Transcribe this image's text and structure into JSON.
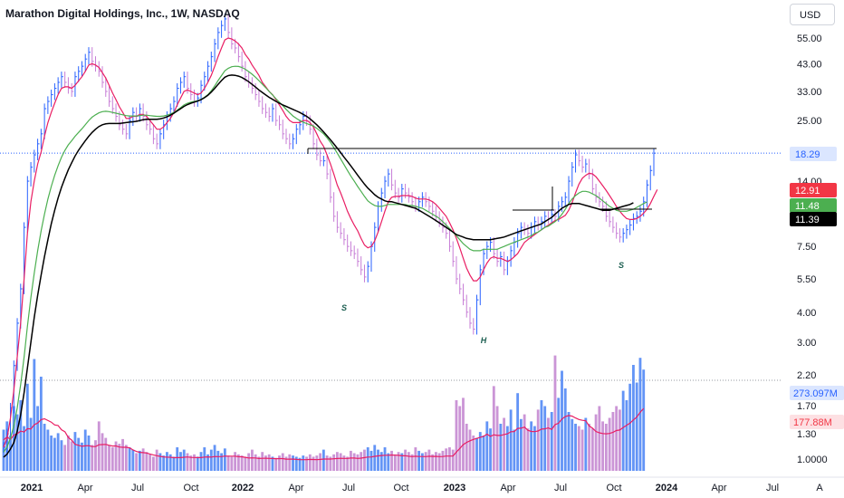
{
  "header": {
    "title": "Marathon Digital Holdings, Inc., 1W, NASDAQ",
    "currency": "USD"
  },
  "chart_data": {
    "type": "candlestick",
    "price_scale": "log",
    "price_ticks": [
      "55.00",
      "43.00",
      "33.00",
      "25.00",
      "14.00",
      "7.50",
      "5.50",
      "4.00",
      "3.00",
      "2.20",
      "1.70",
      "1.30",
      "1.0000"
    ],
    "price_tick_values": [
      55,
      43,
      33,
      25,
      14,
      7.5,
      5.5,
      4.0,
      3.0,
      2.2,
      1.7,
      1.3,
      1.0
    ],
    "time_labels": [
      "2021",
      "Apr",
      "Jul",
      "Oct",
      "2022",
      "Apr",
      "Jul",
      "Oct",
      "2023",
      "Apr",
      "Jul",
      "Oct",
      "2024",
      "Apr",
      "Jul",
      "A"
    ],
    "time_label_bold": [
      true,
      false,
      false,
      false,
      true,
      false,
      false,
      false,
      true,
      false,
      false,
      false,
      true,
      false,
      false,
      false
    ],
    "price_labels": [
      {
        "text": "18.29",
        "value": 18.29,
        "color": "#dbe6ff",
        "text_color": "#2962ff"
      },
      {
        "text": "12.91",
        "value": 12.91,
        "color": "#f23645",
        "text_color": "#ffffff"
      },
      {
        "text": "11.48",
        "value": 11.48,
        "color": "#4caf50",
        "text_color": "#ffffff"
      },
      {
        "text": "11.39",
        "value": 11.39,
        "color": "#000000",
        "text_color": "#ffffff"
      }
    ],
    "volume_labels": [
      {
        "text": "273.097M",
        "color": "#2962ff"
      },
      {
        "text": "177.88M",
        "color": "#f23645"
      }
    ],
    "closes": [
      1.1,
      1.25,
      1.6,
      2.4,
      3.6,
      5.0,
      9.0,
      14,
      16,
      18,
      20,
      22,
      28,
      30,
      32,
      34,
      36,
      38,
      36,
      34,
      33,
      38,
      40,
      42,
      45,
      48,
      44,
      42,
      40,
      36,
      33,
      30,
      28,
      26,
      24,
      23,
      22,
      25,
      27,
      26,
      28,
      26,
      24,
      23,
      21,
      20,
      22,
      24,
      26,
      28,
      30,
      34,
      36,
      38,
      34,
      32,
      30,
      31,
      35,
      38,
      42,
      46,
      52,
      58,
      62,
      66,
      58,
      52,
      50,
      46,
      42,
      38,
      36,
      34,
      32,
      30,
      28,
      27,
      26,
      28,
      25,
      24,
      22,
      21,
      20,
      21,
      23,
      24,
      26,
      25,
      23,
      20,
      18,
      17,
      17,
      15,
      12,
      10,
      9,
      8.5,
      8,
      7.5,
      7.2,
      7.0,
      6.5,
      6.0,
      5.6,
      6.2,
      7.5,
      9.0,
      11,
      12.5,
      14,
      15,
      13.5,
      12.5,
      12,
      13,
      12.5,
      12,
      11.5,
      11,
      11.5,
      12,
      11.5,
      11,
      10.5,
      10,
      9.5,
      9,
      8.5,
      7.5,
      6.5,
      5.5,
      5.0,
      4.5,
      4.0,
      3.6,
      3.4,
      4.5,
      6.0,
      7.0,
      7.5,
      7.8,
      7.0,
      6.5,
      6.8,
      6.0,
      6.5,
      7.2,
      7.8,
      8.5,
      9.0,
      8.8,
      8.5,
      9.0,
      9.5,
      9.2,
      9.5,
      10,
      9.8,
      10.2,
      10,
      11,
      11.5,
      12,
      14,
      16,
      18,
      17,
      16,
      16.5,
      15,
      13,
      12,
      11.5,
      11,
      10,
      9.5,
      9,
      8.5,
      8.2,
      8.5,
      8.8,
      9.2,
      9.8,
      10,
      10.5,
      11.5,
      13.5,
      15.5,
      18.29
    ],
    "series": [
      {
        "name": "",
        "color": "#e91e63",
        "values": [
          1.1,
          1.2,
          1.45,
          1.9,
          2.6,
          3.6,
          5.5,
          8.5,
          11.5,
          14,
          16.5,
          18.5,
          21.5,
          24.5,
          27,
          29.5,
          32,
          34,
          34.5,
          34.5,
          34,
          35,
          36.5,
          38,
          40,
          42.5,
          43,
          42.5,
          41.5,
          39.5,
          37.5,
          35,
          32.5,
          30.5,
          28.5,
          27,
          25.5,
          25.5,
          26,
          26,
          26.5,
          26.5,
          26,
          25,
          24,
          23,
          23,
          23.5,
          24.5,
          25.5,
          27,
          29,
          31,
          33,
          33.5,
          33,
          32.5,
          32,
          32.5,
          34,
          36,
          38.5,
          42,
          46,
          50,
          54,
          55,
          54.5,
          53.5,
          52,
          50,
          47,
          45,
          42.5,
          40.5,
          38.5,
          36,
          34.5,
          33,
          32,
          30.5,
          29,
          27.5,
          26,
          25,
          24.5,
          24.5,
          24.5,
          25,
          25,
          24.5,
          23.5,
          22,
          20.5,
          19.5,
          18,
          16.5,
          15,
          13.5,
          12.5,
          11.5,
          10.5,
          9.8,
          9.2,
          8.7,
          8.1,
          7.6,
          7.4,
          7.5,
          7.9,
          8.6,
          9.5,
          10.5,
          11.5,
          12,
          12.1,
          12.1,
          12.2,
          12.2,
          12.2,
          12.1,
          11.9,
          11.8,
          11.8,
          11.8,
          11.7,
          11.5,
          11.2,
          10.8,
          10.4,
          10,
          9.4,
          8.8,
          8.1,
          7.4,
          6.7,
          6.1,
          5.7,
          5.4,
          5.4,
          5.6,
          6.0,
          6.4,
          6.7,
          6.8,
          6.7,
          6.7,
          6.6,
          6.5,
          6.6,
          6.8,
          7.0,
          7.4,
          7.8,
          8.0,
          8.2,
          8.4,
          8.6,
          8.8,
          9.0,
          9.2,
          9.4,
          9.6,
          9.7,
          9.9,
          10.1,
          10.6,
          11.4,
          12.5,
          13.6,
          14.4,
          14.8,
          15.1,
          15,
          14.6,
          14,
          13.4,
          12.8,
          12.2,
          11.6,
          11,
          10.5,
          10.1,
          9.8,
          9.7,
          9.7,
          9.8,
          10,
          10.3,
          10.7,
          11.3,
          12.1,
          12.91
        ]
      },
      {
        "name": "",
        "color": "#4caf50",
        "values": [
          1.05,
          1.1,
          1.2,
          1.35,
          1.6,
          2.0,
          2.6,
          3.5,
          4.6,
          5.8,
          7.2,
          8.7,
          10.2,
          11.8,
          13.3,
          14.8,
          16.2,
          17.6,
          18.8,
          19.8,
          20.6,
          21.5,
          22.3,
          23.1,
          24,
          25,
          25.8,
          26.4,
          26.9,
          27.2,
          27.3,
          27.2,
          27,
          26.8,
          26.6,
          26.4,
          26.2,
          26.1,
          26.1,
          26.1,
          26.2,
          26.3,
          26.3,
          26.2,
          26.1,
          26,
          26,
          26.1,
          26.3,
          26.6,
          27,
          27.6,
          28.3,
          29,
          29.5,
          29.8,
          30,
          30.2,
          30.6,
          31.2,
          32,
          33.2,
          34.8,
          36.6,
          38.4,
          40.2,
          41.2,
          41.8,
          42,
          41.9,
          41.5,
          40.8,
          39.9,
          38.9,
          37.8,
          36.6,
          35.4,
          34.2,
          33,
          31.9,
          30.8,
          29.8,
          28.8,
          27.8,
          26.9,
          26.1,
          25.5,
          25,
          24.6,
          24.3,
          24,
          23.7,
          23.2,
          22.6,
          22,
          21.2,
          20.3,
          19.3,
          18.3,
          17.3,
          16.4,
          15.5,
          14.7,
          14,
          13.3,
          12.7,
          12.1,
          11.6,
          11.3,
          11.1,
          11,
          11,
          11.1,
          11.2,
          11.2,
          11.2,
          11.2,
          11.2,
          11.2,
          11.1,
          11.1,
          11,
          10.9,
          10.8,
          10.6,
          10.4,
          10.2,
          10,
          9.8,
          9.5,
          9.2,
          8.9,
          8.6,
          8.3,
          8.0,
          7.7,
          7.5,
          7.3,
          7.2,
          7.2,
          7.2,
          7.3,
          7.3,
          7.3,
          7.3,
          7.3,
          7.4,
          7.5,
          7.6,
          7.7,
          7.8,
          7.9,
          8.0,
          8.1,
          8.2,
          8.3,
          8.5,
          8.6,
          8.8,
          9.0,
          9.1,
          9.3,
          9.5,
          9.8,
          10.2,
          10.7,
          11.3,
          11.8,
          12.2,
          12.5,
          12.7,
          12.7,
          12.6,
          12.4,
          12.2,
          11.9,
          11.6,
          11.3,
          11.0,
          10.8,
          10.6,
          10.5,
          10.5,
          10.5,
          10.6,
          10.7,
          10.9,
          11.1,
          11.3,
          11.48
        ]
      },
      {
        "name": "",
        "color": "#000000",
        "values": [
          1.0,
          1.03,
          1.08,
          1.15,
          1.28,
          1.5,
          1.85,
          2.35,
          3.0,
          3.8,
          4.7,
          5.7,
          6.8,
          8.0,
          9.3,
          10.6,
          11.9,
          13.2,
          14.4,
          15.6,
          16.7,
          17.8,
          18.8,
          19.7,
          20.6,
          21.5,
          22.3,
          23,
          23.6,
          24,
          24.2,
          24.3,
          24.3,
          24.3,
          24.3,
          24.4,
          24.5,
          24.6,
          24.7,
          24.8,
          25,
          25.2,
          25.3,
          25.3,
          25.3,
          25.3,
          25.4,
          25.6,
          25.9,
          26.3,
          26.8,
          27.4,
          28,
          28.6,
          29.1,
          29.5,
          29.8,
          30.1,
          30.5,
          31.1,
          31.8,
          32.8,
          34,
          35.3,
          36.6,
          37.8,
          38.4,
          38.6,
          38.5,
          38.2,
          37.7,
          37,
          36.2,
          35.3,
          34.4,
          33.5,
          32.7,
          31.9,
          31.2,
          30.6,
          30,
          29.5,
          29,
          28.6,
          28.2,
          27.8,
          27.4,
          27,
          26.5,
          26,
          25.4,
          24.7,
          24,
          23.2,
          22.4,
          21.6,
          20.8,
          20,
          19.2,
          18.4,
          17.6,
          16.9,
          16.2,
          15.5,
          14.8,
          14.2,
          13.6,
          13.1,
          12.7,
          12.3,
          12.0,
          11.8,
          11.6,
          11.5,
          11.5,
          11.4,
          11.3,
          11.2,
          11.1,
          11,
          10.9,
          10.8,
          10.6,
          10.4,
          10.2,
          10,
          9.8,
          9.6,
          9.4,
          9.2,
          9.0,
          8.8,
          8.6,
          8.4,
          8.3,
          8.2,
          8.1,
          8.05,
          8.0,
          8.0,
          8.0,
          8.0,
          8.0,
          8.0,
          8.05,
          8.1,
          8.15,
          8.2,
          8.3,
          8.4,
          8.5,
          8.6,
          8.7,
          8.8,
          8.9,
          9.0,
          9.1,
          9.2,
          9.3,
          9.5,
          9.7,
          9.9,
          10.2,
          10.5,
          10.8,
          11.0,
          11.2,
          11.3,
          11.3,
          11.3,
          11.2,
          11.1,
          11.0,
          10.9,
          10.8,
          10.7,
          10.6,
          10.6,
          10.6,
          10.7,
          10.8,
          10.9,
          11.0,
          11.1,
          11.2,
          11.39
        ]
      }
    ],
    "volumes": [
      0.35,
      0.42,
      0.3,
      0.55,
      0.48,
      0.6,
      0.38,
      0.74,
      0.45,
      0.95,
      0.55,
      0.8,
      0.4,
      0.35,
      0.3,
      0.28,
      0.32,
      0.26,
      0.22,
      0.3,
      0.25,
      0.33,
      0.28,
      0.24,
      0.35,
      0.3,
      0.22,
      0.26,
      0.42,
      0.32,
      0.28,
      0.22,
      0.2,
      0.25,
      0.23,
      0.27,
      0.22,
      0.2,
      0.18,
      0.15,
      0.17,
      0.19,
      0.16,
      0.14,
      0.12,
      0.18,
      0.15,
      0.13,
      0.16,
      0.14,
      0.12,
      0.2,
      0.16,
      0.18,
      0.15,
      0.13,
      0.14,
      0.12,
      0.16,
      0.2,
      0.14,
      0.18,
      0.22,
      0.17,
      0.15,
      0.19,
      0.13,
      0.12,
      0.16,
      0.14,
      0.13,
      0.12,
      0.15,
      0.18,
      0.14,
      0.12,
      0.16,
      0.13,
      0.14,
      0.12,
      0.11,
      0.13,
      0.15,
      0.12,
      0.14,
      0.13,
      0.12,
      0.11,
      0.13,
      0.12,
      0.14,
      0.12,
      0.13,
      0.15,
      0.18,
      0.13,
      0.12,
      0.14,
      0.16,
      0.15,
      0.13,
      0.12,
      0.17,
      0.15,
      0.14,
      0.16,
      0.18,
      0.2,
      0.17,
      0.22,
      0.18,
      0.16,
      0.2,
      0.15,
      0.17,
      0.14,
      0.16,
      0.15,
      0.18,
      0.16,
      0.14,
      0.2,
      0.17,
      0.15,
      0.16,
      0.18,
      0.14,
      0.16,
      0.15,
      0.17,
      0.19,
      0.2,
      0.18,
      0.6,
      0.55,
      0.62,
      0.4,
      0.35,
      0.3,
      0.28,
      0.33,
      0.3,
      0.42,
      0.36,
      0.72,
      0.55,
      0.4,
      0.45,
      0.38,
      0.52,
      0.35,
      0.66,
      0.44,
      0.48,
      0.36,
      0.42,
      0.38,
      0.52,
      0.6,
      0.55,
      0.45,
      0.5,
      0.98,
      0.62,
      0.85,
      0.7,
      0.5,
      0.44,
      0.4,
      0.38,
      0.35,
      0.45,
      0.4,
      0.36,
      0.48,
      0.55,
      0.42,
      0.4,
      0.45,
      0.5,
      0.55,
      0.52,
      0.68,
      0.6,
      0.74,
      0.9,
      0.75,
      0.96,
      0.86
    ]
  },
  "annotations": {
    "left_shoulder": "S",
    "head": "H",
    "right_shoulder": "S"
  }
}
